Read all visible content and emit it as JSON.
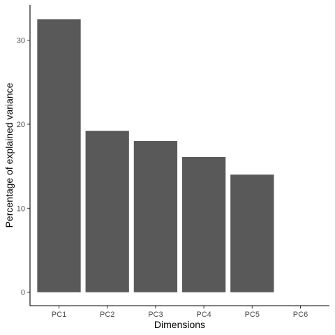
{
  "chart_data": {
    "type": "bar",
    "categories": [
      "PC1",
      "PC2",
      "PC3",
      "PC4",
      "PC5",
      "PC6"
    ],
    "values": [
      32.5,
      19.2,
      18.0,
      16.1,
      14.0,
      0
    ],
    "xlabel": "Dimensions",
    "ylabel": "Percentage of explained variance",
    "ylim": [
      -1.6,
      34.2
    ],
    "yticks": [
      0,
      10,
      20,
      30
    ],
    "grid": false,
    "bar_color": "#595959",
    "axis_color": "#000000",
    "tick_label_color": "#4d4d4d"
  }
}
